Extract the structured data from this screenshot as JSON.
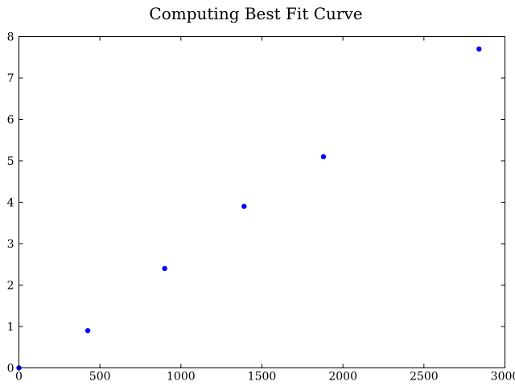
{
  "chart_data": {
    "type": "scatter",
    "title": "Computing Best Fit Curve",
    "xlabel": "",
    "ylabel": "",
    "xlim": [
      0,
      3000
    ],
    "ylim": [
      0,
      8
    ],
    "x_ticks": [
      0,
      500,
      1000,
      1500,
      2000,
      2500,
      3000
    ],
    "y_ticks": [
      0,
      1,
      2,
      3,
      4,
      5,
      6,
      7,
      8
    ],
    "grid": false,
    "legend": "none",
    "colors": {
      "marker": "#0000ff",
      "axis": "#000000",
      "background": "#ffffff"
    },
    "series": [
      {
        "points": [
          {
            "x": 0,
            "y": 0
          },
          {
            "x": 425,
            "y": 0.9
          },
          {
            "x": 900,
            "y": 2.4
          },
          {
            "x": 1390,
            "y": 3.9
          },
          {
            "x": 1880,
            "y": 5.1
          },
          {
            "x": 2840,
            "y": 7.7
          }
        ]
      }
    ]
  }
}
